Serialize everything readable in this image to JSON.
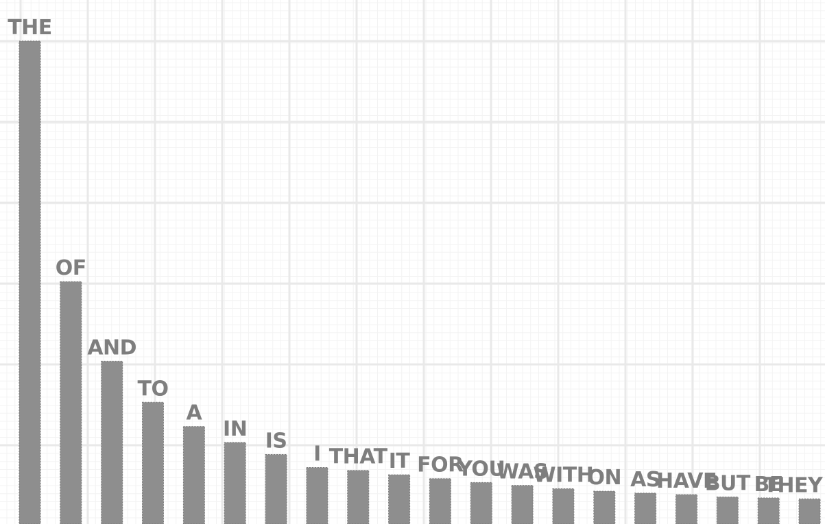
{
  "chart_data": {
    "type": "bar",
    "categories": [
      "THE",
      "OF",
      "AND",
      "TO",
      "A",
      "IN",
      "IS",
      "I",
      "THAT",
      "IT",
      "FOR",
      "YOU",
      "WAS",
      "WITH",
      "ON",
      "AS",
      "HAVE",
      "BUT",
      "BE",
      "THEY"
    ],
    "values": [
      100,
      50.2,
      33.7,
      25.2,
      20.2,
      16.9,
      14.4,
      11.7,
      11.1,
      10.2,
      9.4,
      8.6,
      8.0,
      7.3,
      6.8,
      6.4,
      6.1,
      5.6,
      5.4,
      5.2
    ],
    "title": "",
    "xlabel": "",
    "ylabel": "",
    "ylim": [
      0,
      100
    ],
    "grid": true,
    "legend": "none",
    "colors": {
      "bar": "#8e8e8e",
      "label": "#7e7e7e",
      "major_grid": "#e9e9e9",
      "minor_grid": "#f3f3f3"
    }
  }
}
